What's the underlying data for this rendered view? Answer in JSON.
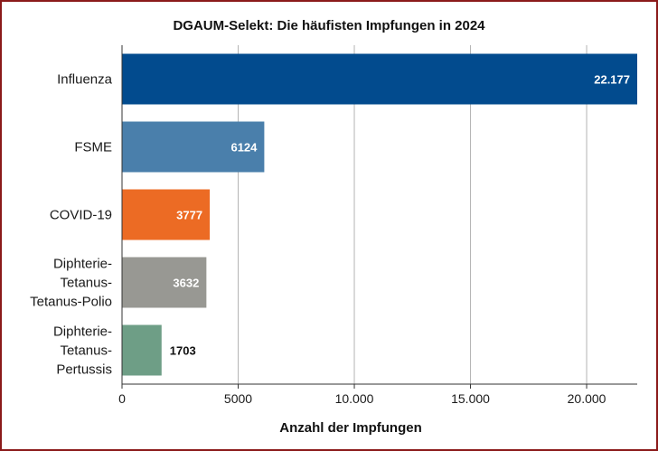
{
  "chart_data": {
    "type": "bar",
    "orientation": "horizontal",
    "title": "DGAUM-Selekt: Die häufisten Impfungen in 2024",
    "xlabel": "Anzahl der Impfungen",
    "ylabel": "",
    "xlim": [
      0,
      22177
    ],
    "xticks": [
      0,
      5000,
      10000,
      15000,
      20000
    ],
    "xtick_labels": [
      "0",
      "5000",
      "10.000",
      "15.000",
      "20.000"
    ],
    "grid": true,
    "categories": [
      [
        "Influenza"
      ],
      [
        "FSME"
      ],
      [
        "COVID-19"
      ],
      [
        "Diphterie-",
        "Tetanus-",
        "Tetanus-Polio"
      ],
      [
        "Diphterie-",
        "Tetanus-",
        "Pertussis"
      ]
    ],
    "values": [
      22177,
      6124,
      3777,
      3632,
      1703
    ],
    "value_labels": [
      "22.177",
      "6124",
      "3777",
      "3632",
      "1703"
    ],
    "colors": [
      "#024b8e",
      "#4a7fab",
      "#ec6b24",
      "#989893",
      "#6e9e86"
    ],
    "value_label_colors": [
      "#ffffff",
      "#ffffff",
      "#ffffff",
      "#ffffff",
      "#111111"
    ],
    "value_label_inside": [
      true,
      true,
      true,
      true,
      false
    ]
  }
}
